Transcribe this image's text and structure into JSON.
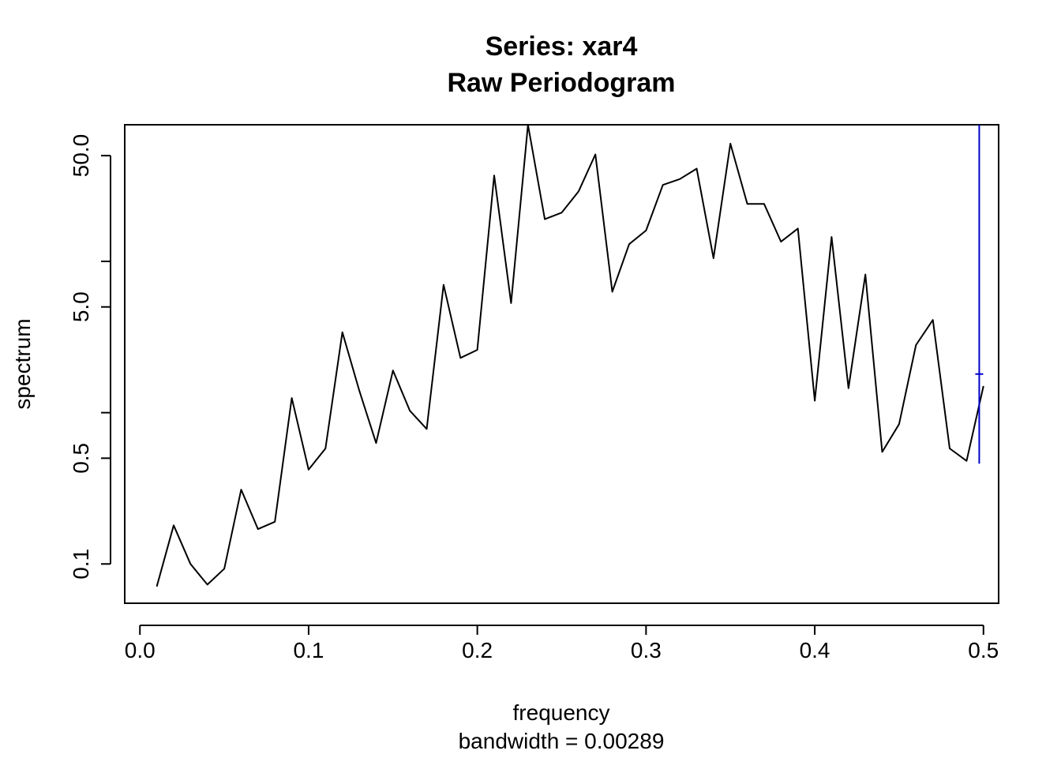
{
  "chart_data": {
    "type": "line",
    "title": "Series: xar4",
    "subtitle": "Raw Periodogram",
    "xlabel": "frequency",
    "sublabel": "bandwidth = 0.00289",
    "ylabel": "spectrum",
    "y_scale": "log",
    "xlim": [
      -0.009,
      0.509
    ],
    "ylim": [
      0.055,
      80
    ],
    "x_ticks": [
      0.0,
      0.1,
      0.2,
      0.3,
      0.4,
      0.5
    ],
    "x_tick_labels": [
      "0.0",
      "0.1",
      "0.2",
      "0.3",
      "0.4",
      "0.5"
    ],
    "y_ticks": [
      0.1,
      0.5,
      1,
      5,
      10,
      50,
      100
    ],
    "y_tick_labels": [
      "0.1",
      "0.5",
      "",
      "5.0",
      "",
      "50.0",
      ""
    ],
    "series": [
      {
        "name": "xar4",
        "color": "#000000",
        "x": [
          0.01,
          0.02,
          0.03,
          0.04,
          0.05,
          0.06,
          0.07,
          0.08,
          0.09,
          0.1,
          0.11,
          0.12,
          0.13,
          0.14,
          0.15,
          0.16,
          0.17,
          0.18,
          0.19,
          0.2,
          0.21,
          0.22,
          0.23,
          0.24,
          0.25,
          0.26,
          0.27,
          0.28,
          0.29,
          0.3,
          0.31,
          0.32,
          0.33,
          0.34,
          0.35,
          0.36,
          0.37,
          0.38,
          0.39,
          0.4,
          0.41,
          0.42,
          0.43,
          0.44,
          0.45,
          0.46,
          0.47,
          0.48,
          0.49,
          0.5
        ],
        "values": [
          0.071,
          0.18,
          0.1,
          0.073,
          0.093,
          0.31,
          0.17,
          0.19,
          1.25,
          0.42,
          0.58,
          3.4,
          1.4,
          0.63,
          1.9,
          1.03,
          0.78,
          7.0,
          2.3,
          2.6,
          37,
          5.3,
          80,
          19,
          21,
          29,
          51,
          6.3,
          13,
          16,
          32,
          35,
          41,
          10.5,
          60,
          24,
          24,
          13.5,
          16.5,
          1.2,
          14.5,
          1.45,
          8.2,
          0.55,
          0.84,
          2.8,
          4.1,
          0.58,
          0.48,
          1.5
        ]
      }
    ],
    "confidence_bar": {
      "color": "#0000cc",
      "x": 0.4975,
      "upper": 80,
      "center": 1.8,
      "lower": 0.46
    }
  }
}
